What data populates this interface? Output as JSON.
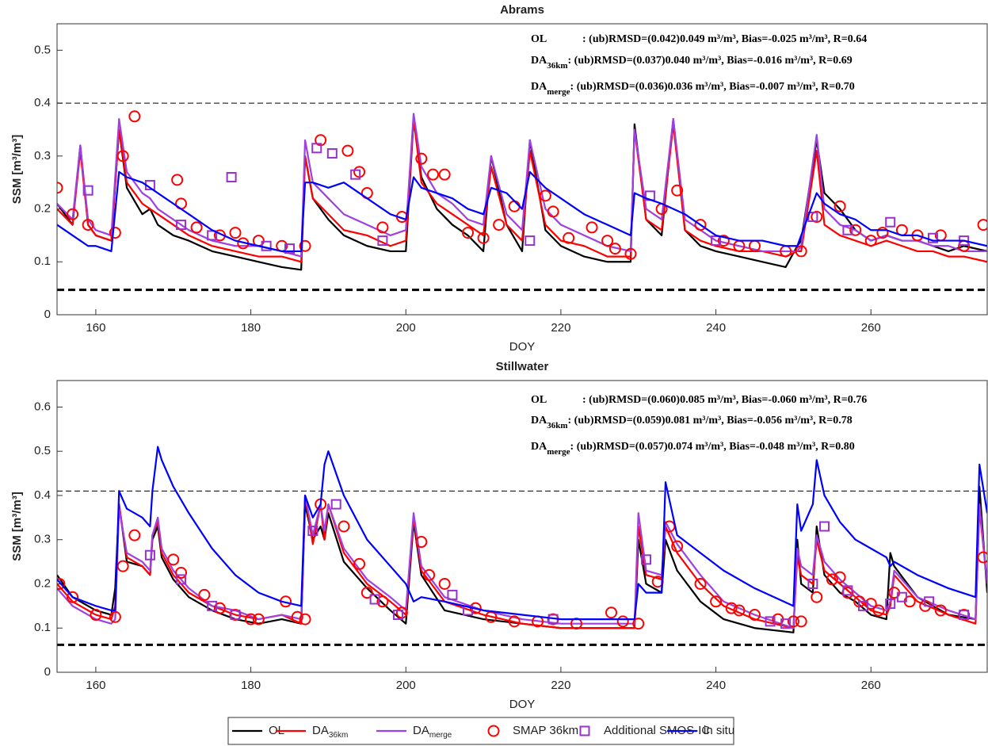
{
  "chart_data": [
    {
      "type": "line",
      "title": "Abrams",
      "xlabel": "DOY",
      "ylabel": "SSM [m³/m³]",
      "xlim": [
        155,
        275
      ],
      "ylim": [
        0,
        0.55
      ],
      "xticks": [
        160,
        180,
        200,
        220,
        240,
        260
      ],
      "yticks": [
        0,
        0.1,
        0.2,
        0.3,
        0.4,
        0.5
      ],
      "reference_lines": [
        {
          "value": 0.4,
          "style": "thin"
        },
        {
          "value": 0.047,
          "style": "thick"
        }
      ],
      "annotations": [
        {
          "label": "OL",
          "text": ": (ub)RMSD=(0.042)0.049 m³/m³, Bias=-0.025 m³/m³, R=0.64"
        },
        {
          "label": "DA",
          "label_sub": "36km",
          "text": ": (ub)RMSD=(0.037)0.040 m³/m³, Bias=-0.016 m³/m³, R=0.69"
        },
        {
          "label": "DA",
          "label_sub": "merge",
          "text": ": (ub)RMSD=(0.036)0.036 m³/m³, Bias=-0.007 m³/m³, R=0.70"
        }
      ],
      "x": [
        155,
        157,
        158,
        159,
        160,
        162,
        163,
        164,
        166,
        167,
        168,
        170,
        172,
        175,
        178,
        181,
        184,
        186.5,
        187,
        188,
        190,
        192,
        195,
        198,
        200,
        201,
        202,
        204,
        206,
        208,
        210,
        211,
        213,
        215,
        216,
        218,
        220,
        223,
        226,
        229,
        229.5,
        231,
        233,
        234.5,
        236,
        238,
        240,
        243,
        246,
        249,
        250.5,
        251,
        253,
        254,
        256,
        258,
        260,
        262,
        264,
        266,
        268,
        270,
        272,
        275
      ],
      "series": [
        {
          "name": "OL",
          "color": "#000000",
          "values": [
            0.21,
            0.17,
            0.32,
            0.17,
            0.15,
            0.14,
            0.35,
            0.24,
            0.19,
            0.2,
            0.17,
            0.15,
            0.14,
            0.12,
            0.11,
            0.1,
            0.09,
            0.085,
            0.3,
            0.22,
            0.18,
            0.15,
            0.13,
            0.12,
            0.12,
            0.37,
            0.26,
            0.2,
            0.17,
            0.15,
            0.12,
            0.3,
            0.17,
            0.12,
            0.33,
            0.16,
            0.13,
            0.11,
            0.1,
            0.1,
            0.36,
            0.18,
            0.15,
            0.37,
            0.16,
            0.13,
            0.12,
            0.11,
            0.1,
            0.09,
            0.13,
            0.14,
            0.33,
            0.23,
            0.2,
            0.16,
            0.14,
            0.15,
            0.14,
            0.14,
            0.13,
            0.12,
            0.13,
            0.12
          ]
        },
        {
          "name": "DA",
          "name_sub": "36km",
          "color": "#ff0000",
          "values": [
            0.2,
            0.17,
            0.31,
            0.17,
            0.15,
            0.14,
            0.35,
            0.25,
            0.21,
            0.2,
            0.19,
            0.17,
            0.15,
            0.13,
            0.12,
            0.11,
            0.11,
            0.1,
            0.3,
            0.22,
            0.19,
            0.16,
            0.15,
            0.13,
            0.14,
            0.37,
            0.25,
            0.21,
            0.19,
            0.17,
            0.15,
            0.28,
            0.17,
            0.14,
            0.31,
            0.17,
            0.14,
            0.13,
            0.11,
            0.11,
            0.35,
            0.18,
            0.16,
            0.36,
            0.16,
            0.14,
            0.13,
            0.12,
            0.12,
            0.11,
            0.12,
            0.12,
            0.31,
            0.17,
            0.15,
            0.14,
            0.13,
            0.14,
            0.13,
            0.12,
            0.12,
            0.11,
            0.11,
            0.1
          ]
        },
        {
          "name": "DA",
          "name_sub": "merge",
          "color": "#a040e0",
          "values": [
            0.21,
            0.18,
            0.32,
            0.18,
            0.16,
            0.15,
            0.37,
            0.27,
            0.23,
            0.22,
            0.2,
            0.18,
            0.16,
            0.14,
            0.13,
            0.13,
            0.12,
            0.11,
            0.33,
            0.25,
            0.22,
            0.19,
            0.17,
            0.15,
            0.16,
            0.38,
            0.28,
            0.23,
            0.21,
            0.18,
            0.17,
            0.3,
            0.19,
            0.16,
            0.33,
            0.2,
            0.17,
            0.15,
            0.13,
            0.12,
            0.35,
            0.2,
            0.18,
            0.37,
            0.18,
            0.16,
            0.14,
            0.13,
            0.12,
            0.12,
            0.12,
            0.13,
            0.34,
            0.2,
            0.17,
            0.16,
            0.14,
            0.15,
            0.14,
            0.14,
            0.13,
            0.13,
            0.12,
            0.12
          ]
        },
        {
          "name": "SMAP 36km",
          "color": "#ff0000",
          "marker": "circle",
          "x": [
            155,
            157,
            159,
            162.5,
            163.5,
            165,
            170.5,
            171,
            173,
            176,
            178,
            179,
            181,
            184,
            187,
            189,
            192.5,
            194,
            195,
            197,
            199.5,
            202,
            203.5,
            205,
            208,
            210,
            212,
            214,
            218,
            219,
            221,
            224,
            226,
            227,
            229,
            233,
            235,
            238,
            241,
            243,
            245,
            249,
            251,
            253,
            256,
            258,
            260,
            261.5,
            264,
            266,
            269,
            272,
            274.5
          ],
          "values": [
            0.24,
            0.19,
            0.17,
            0.155,
            0.3,
            0.375,
            0.255,
            0.21,
            0.165,
            0.15,
            0.155,
            0.135,
            0.14,
            0.13,
            0.13,
            0.33,
            0.31,
            0.27,
            0.23,
            0.165,
            0.185,
            0.295,
            0.265,
            0.265,
            0.155,
            0.145,
            0.17,
            0.205,
            0.225,
            0.195,
            0.145,
            0.165,
            0.14,
            0.125,
            0.115,
            0.2,
            0.235,
            0.17,
            0.14,
            0.13,
            0.13,
            0.12,
            0.12,
            0.185,
            0.205,
            0.16,
            0.14,
            0.155,
            0.16,
            0.15,
            0.15,
            0.13,
            0.17
          ]
        },
        {
          "name": "Additional SMOS-IC",
          "color": "#9932cc",
          "marker": "square",
          "x": [
            159,
            167,
            171,
            175,
            177.5,
            182,
            185,
            188.5,
            190.5,
            193.5,
            197,
            216,
            231.5,
            240,
            252.5,
            257,
            262.5,
            268,
            272
          ],
          "values": [
            0.235,
            0.245,
            0.17,
            0.15,
            0.26,
            0.13,
            0.125,
            0.315,
            0.305,
            0.265,
            0.14,
            0.14,
            0.225,
            0.14,
            0.185,
            0.16,
            0.175,
            0.145,
            0.14
          ]
        },
        {
          "name": "in situ",
          "color": "#0000ff",
          "values": [
            0.17,
            0.15,
            0.14,
            0.13,
            0.13,
            0.12,
            0.27,
            0.26,
            0.25,
            0.24,
            0.23,
            0.21,
            0.19,
            0.16,
            0.14,
            0.13,
            0.12,
            0.12,
            0.25,
            0.25,
            0.24,
            0.25,
            0.22,
            0.19,
            0.18,
            0.26,
            0.24,
            0.23,
            0.22,
            0.2,
            0.19,
            0.24,
            0.23,
            0.2,
            0.27,
            0.24,
            0.22,
            0.19,
            0.17,
            0.15,
            0.23,
            0.22,
            0.21,
            0.2,
            0.19,
            0.17,
            0.15,
            0.14,
            0.14,
            0.13,
            0.13,
            0.15,
            0.23,
            0.21,
            0.19,
            0.18,
            0.16,
            0.16,
            0.15,
            0.15,
            0.14,
            0.14,
            0.14,
            0.13
          ]
        }
      ]
    },
    {
      "type": "line",
      "title": "Stillwater",
      "xlabel": "DOY",
      "ylabel": "SSM [m³/m³]",
      "xlim": [
        155,
        275
      ],
      "ylim": [
        0,
        0.66
      ],
      "xticks": [
        160,
        180,
        200,
        220,
        240,
        260
      ],
      "yticks": [
        0,
        0.1,
        0.2,
        0.3,
        0.4,
        0.5,
        0.6
      ],
      "reference_lines": [
        {
          "value": 0.41,
          "style": "thin"
        },
        {
          "value": 0.062,
          "style": "thick"
        }
      ],
      "annotations": [
        {
          "label": "OL",
          "text": ": (ub)RMSD=(0.060)0.085 m³/m³, Bias=-0.060 m³/m³, R=0.76"
        },
        {
          "label": "DA",
          "label_sub": "36km",
          "text": ": (ub)RMSD=(0.059)0.081 m³/m³, Bias=-0.056 m³/m³, R=0.78"
        },
        {
          "label": "DA",
          "label_sub": "merge",
          "text": ": (ub)RMSD=(0.057)0.074 m³/m³, Bias=-0.048 m³/m³, R=0.80"
        }
      ],
      "x": [
        155,
        157,
        160,
        162,
        162.5,
        163,
        164,
        166,
        167,
        167.3,
        168,
        168.5,
        170,
        172,
        175,
        178,
        181,
        184,
        186.5,
        187,
        188,
        189,
        189.5,
        190,
        192,
        195,
        198,
        200,
        201,
        202,
        205,
        210,
        215,
        220,
        225,
        229.5,
        230,
        231,
        233,
        233.5,
        235,
        238,
        241,
        245,
        250,
        250.5,
        251,
        252.5,
        253,
        254,
        256,
        258,
        260,
        262,
        262.5,
        263,
        266,
        270,
        273.5,
        274,
        275
      ],
      "series": [
        {
          "color": "#000000",
          "values": [
            0.22,
            0.17,
            0.14,
            0.13,
            0.19,
            0.38,
            0.25,
            0.24,
            0.22,
            0.3,
            0.33,
            0.26,
            0.21,
            0.17,
            0.14,
            0.12,
            0.11,
            0.12,
            0.11,
            0.38,
            0.3,
            0.33,
            0.3,
            0.36,
            0.25,
            0.19,
            0.14,
            0.11,
            0.34,
            0.22,
            0.14,
            0.12,
            0.11,
            0.1,
            0.1,
            0.1,
            0.3,
            0.2,
            0.18,
            0.3,
            0.23,
            0.16,
            0.12,
            0.1,
            0.09,
            0.3,
            0.2,
            0.18,
            0.33,
            0.22,
            0.18,
            0.16,
            0.13,
            0.12,
            0.27,
            0.24,
            0.17,
            0.13,
            0.12,
            0.42,
            0.18
          ]
        },
        {
          "color": "#ff0000",
          "values": [
            0.2,
            0.16,
            0.13,
            0.12,
            0.15,
            0.38,
            0.26,
            0.24,
            0.22,
            0.31,
            0.34,
            0.27,
            0.22,
            0.18,
            0.15,
            0.13,
            0.12,
            0.13,
            0.11,
            0.4,
            0.29,
            0.38,
            0.3,
            0.38,
            0.27,
            0.2,
            0.16,
            0.13,
            0.35,
            0.23,
            0.16,
            0.13,
            0.11,
            0.1,
            0.1,
            0.1,
            0.33,
            0.22,
            0.21,
            0.33,
            0.27,
            0.2,
            0.15,
            0.12,
            0.1,
            0.26,
            0.22,
            0.2,
            0.3,
            0.23,
            0.2,
            0.17,
            0.14,
            0.13,
            0.15,
            0.22,
            0.16,
            0.13,
            0.11,
            0.37,
            0.2
          ]
        },
        {
          "color": "#a040e0",
          "values": [
            0.19,
            0.15,
            0.12,
            0.11,
            0.12,
            0.37,
            0.27,
            0.25,
            0.23,
            0.31,
            0.35,
            0.28,
            0.23,
            0.19,
            0.15,
            0.14,
            0.12,
            0.13,
            0.12,
            0.4,
            0.31,
            0.38,
            0.32,
            0.38,
            0.28,
            0.21,
            0.17,
            0.14,
            0.36,
            0.24,
            0.17,
            0.14,
            0.12,
            0.11,
            0.11,
            0.11,
            0.36,
            0.23,
            0.22,
            0.34,
            0.29,
            0.22,
            0.16,
            0.13,
            0.1,
            0.28,
            0.24,
            0.22,
            0.31,
            0.25,
            0.21,
            0.18,
            0.15,
            0.14,
            0.16,
            0.23,
            0.17,
            0.14,
            0.12,
            0.38,
            0.2
          ]
        },
        {
          "color": "#ff0000",
          "marker": "circle",
          "x": [
            155.3,
            157,
            160,
            162.5,
            163.5,
            165,
            170,
            171,
            174,
            176,
            178,
            180,
            181,
            184.5,
            186,
            187,
            189,
            192,
            194,
            195,
            197,
            199.5,
            202,
            203,
            205,
            209,
            211,
            214,
            217,
            219,
            222,
            226.5,
            228,
            230,
            232.5,
            234,
            235,
            238,
            240,
            242,
            243,
            245,
            248,
            250,
            251,
            253,
            255,
            256,
            257,
            258.5,
            260,
            261,
            263,
            265,
            267,
            269,
            272,
            274.5
          ],
          "values": [
            0.2,
            0.17,
            0.13,
            0.125,
            0.24,
            0.31,
            0.255,
            0.225,
            0.175,
            0.145,
            0.13,
            0.12,
            0.12,
            0.16,
            0.125,
            0.12,
            0.38,
            0.33,
            0.245,
            0.18,
            0.16,
            0.135,
            0.295,
            0.22,
            0.2,
            0.145,
            0.125,
            0.115,
            0.115,
            0.12,
            0.11,
            0.135,
            0.115,
            0.11,
            0.205,
            0.33,
            0.285,
            0.2,
            0.16,
            0.145,
            0.14,
            0.13,
            0.12,
            0.115,
            0.115,
            0.17,
            0.21,
            0.215,
            0.18,
            0.16,
            0.155,
            0.14,
            0.18,
            0.16,
            0.15,
            0.14,
            0.13,
            0.26
          ]
        },
        {
          "color": "#9932cc",
          "marker": "square",
          "x": [
            167,
            171,
            175,
            178,
            188,
            191,
            196,
            199,
            206,
            208,
            219,
            231,
            247,
            249,
            252.5,
            254,
            257,
            259,
            262.5,
            264,
            267.5,
            272
          ],
          "values": [
            0.265,
            0.21,
            0.15,
            0.13,
            0.32,
            0.38,
            0.165,
            0.13,
            0.175,
            0.14,
            0.12,
            0.255,
            0.115,
            0.11,
            0.2,
            0.33,
            0.185,
            0.15,
            0.155,
            0.17,
            0.16,
            0.13
          ]
        },
        {
          "color": "#0000ff",
          "values": [
            0.21,
            0.17,
            0.15,
            0.14,
            0.14,
            0.41,
            0.37,
            0.35,
            0.33,
            0.41,
            0.51,
            0.48,
            0.42,
            0.36,
            0.28,
            0.22,
            0.18,
            0.16,
            0.15,
            0.4,
            0.35,
            0.38,
            0.47,
            0.5,
            0.4,
            0.3,
            0.24,
            0.2,
            0.16,
            0.17,
            0.16,
            0.14,
            0.13,
            0.12,
            0.12,
            0.12,
            0.2,
            0.18,
            0.18,
            0.43,
            0.31,
            0.27,
            0.23,
            0.19,
            0.15,
            0.38,
            0.32,
            0.38,
            0.48,
            0.4,
            0.34,
            0.3,
            0.28,
            0.26,
            0.24,
            0.25,
            0.22,
            0.19,
            0.17,
            0.47,
            0.36
          ]
        }
      ]
    }
  ]
}
